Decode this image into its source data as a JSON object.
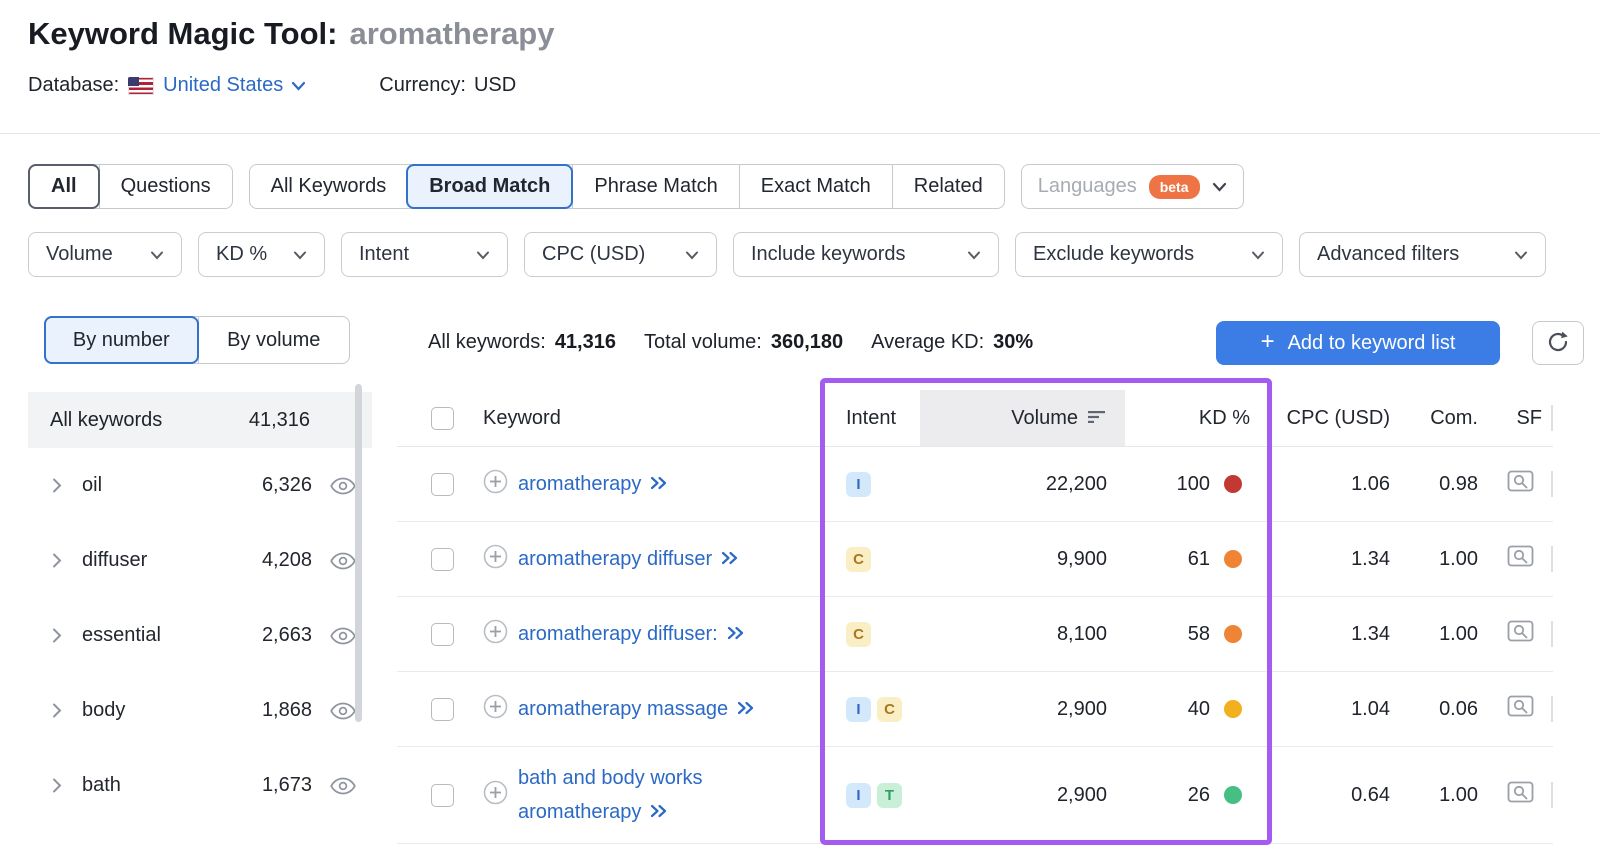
{
  "colors": {
    "accent_blue": "#3b7de4",
    "link_blue": "#2b69c6",
    "selected_tab_border": "#3472c8",
    "selected_tab_bg": "#e9f2fd",
    "purple_highlight": "#a45bf0",
    "beta_badge_orange": "#ee7445",
    "kd_dots": {
      "red": "#c23934",
      "orange": "#ee8434",
      "yellow": "#f2b01e",
      "green": "#45bf83"
    },
    "intent_badges": {
      "I": {
        "bg": "#d4e8fc",
        "fg": "#3268c2"
      },
      "C": {
        "bg": "#faeec5",
        "fg": "#a8791f"
      },
      "T": {
        "bg": "#c9efd9",
        "fg": "#2e9e63"
      }
    }
  },
  "header": {
    "title": "Keyword Magic Tool:",
    "query": "aromatherapy",
    "database_label": "Database:",
    "database_value": "United States",
    "currency_label": "Currency:",
    "currency_value": "USD"
  },
  "match_tabs": {
    "group1": [
      {
        "label": "All",
        "selected": true
      },
      {
        "label": "Questions",
        "selected": false
      }
    ],
    "group2": [
      {
        "label": "All Keywords",
        "selected": false
      },
      {
        "label": "Broad Match",
        "selected": true
      },
      {
        "label": "Phrase Match",
        "selected": false
      },
      {
        "label": "Exact Match",
        "selected": false
      },
      {
        "label": "Related",
        "selected": false
      }
    ],
    "languages": {
      "label": "Languages",
      "badge": "beta"
    }
  },
  "filters": [
    {
      "label": "Volume"
    },
    {
      "label": "KD %"
    },
    {
      "label": "Intent"
    },
    {
      "label": "CPC (USD)"
    },
    {
      "label": "Include keywords"
    },
    {
      "label": "Exclude keywords"
    },
    {
      "label": "Advanced filters"
    }
  ],
  "sidebar": {
    "view_toggle": [
      {
        "label": "By number",
        "selected": true
      },
      {
        "label": "By volume",
        "selected": false
      }
    ],
    "all_keywords": {
      "label": "All keywords",
      "count": "41,316"
    },
    "groups": [
      {
        "label": "oil",
        "count": "6,326"
      },
      {
        "label": "diffuser",
        "count": "4,208"
      },
      {
        "label": "essential",
        "count": "2,663"
      },
      {
        "label": "body",
        "count": "1,868"
      },
      {
        "label": "bath",
        "count": "1,673"
      }
    ]
  },
  "summary": {
    "all_keywords_label": "All keywords:",
    "all_keywords_value": "41,316",
    "total_volume_label": "Total volume:",
    "total_volume_value": "360,180",
    "average_kd_label": "Average KD:",
    "average_kd_value": "30%",
    "add_button_label": "Add to keyword list"
  },
  "table": {
    "headers": {
      "keyword": "Keyword",
      "intent": "Intent",
      "volume": "Volume",
      "kd": "KD %",
      "cpc": "CPC (USD)",
      "com": "Com.",
      "sf": "SF"
    },
    "rows": [
      {
        "keyword": "aromatherapy",
        "intents": [
          "I"
        ],
        "volume": "22,200",
        "kd": "100",
        "kd_level": "red",
        "cpc": "1.06",
        "com": "0.98"
      },
      {
        "keyword": "aromatherapy diffuser",
        "intents": [
          "C"
        ],
        "volume": "9,900",
        "kd": "61",
        "kd_level": "orange",
        "cpc": "1.34",
        "com": "1.00"
      },
      {
        "keyword": "aromatherapy diffuser:",
        "intents": [
          "C"
        ],
        "volume": "8,100",
        "kd": "58",
        "kd_level": "orange",
        "cpc": "1.34",
        "com": "1.00"
      },
      {
        "keyword": "aromatherapy massage",
        "intents": [
          "I",
          "C"
        ],
        "volume": "2,900",
        "kd": "40",
        "kd_level": "yellow",
        "cpc": "1.04",
        "com": "0.06"
      },
      {
        "keyword": "bath and body works aromatherapy",
        "intents": [
          "I",
          "T"
        ],
        "volume": "2,900",
        "kd": "26",
        "kd_level": "green",
        "cpc": "0.64",
        "com": "1.00"
      }
    ]
  }
}
